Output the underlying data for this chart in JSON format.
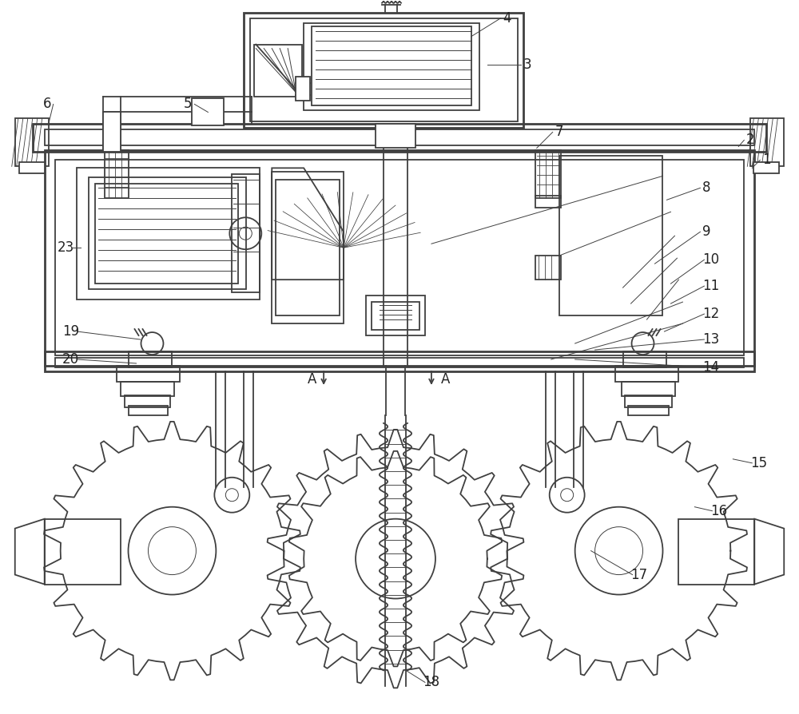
{
  "bg": "#ffffff",
  "lc": "#404040",
  "figsize": [
    10.0,
    8.94
  ],
  "dpi": 100,
  "lw": 1.3,
  "lw_thick": 2.0,
  "lw_thin": 0.7,
  "label_fs": 12
}
